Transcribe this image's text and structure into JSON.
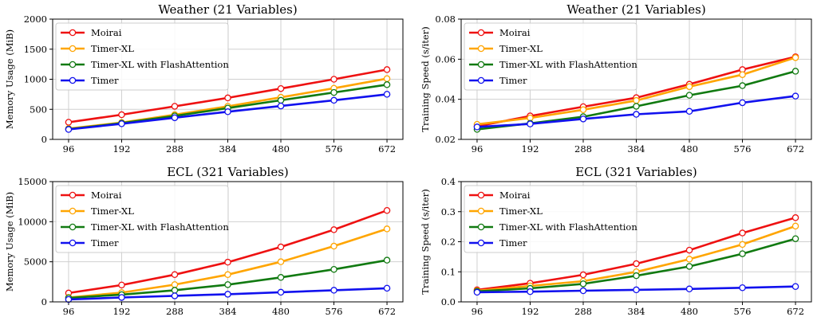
{
  "chart_data": [
    {
      "type": "line",
      "title": "Weather (21 Variables)",
      "xlabel": "",
      "ylabel": "Memory Usage (MiB)",
      "x": [
        96,
        192,
        288,
        384,
        480,
        576,
        672
      ],
      "ylim": [
        0,
        2000
      ],
      "yticks": [
        0,
        500,
        1000,
        1500,
        2000
      ],
      "ytick_labels": [
        "0",
        "500",
        "1000",
        "1500",
        "2000"
      ],
      "grid": true,
      "legend_position": "top-left",
      "series": [
        {
          "name": "Moirai",
          "color": "#ee1111",
          "values": [
            285,
            410,
            550,
            690,
            845,
            1000,
            1160
          ]
        },
        {
          "name": "Timer-XL",
          "color": "#ffa500",
          "values": [
            180,
            280,
            410,
            550,
            700,
            850,
            1010
          ]
        },
        {
          "name": "Timer-XL with FlashAttention",
          "color": "#117a11",
          "values": [
            170,
            270,
            390,
            520,
            650,
            780,
            910
          ]
        },
        {
          "name": "Timer",
          "color": "#1111ee",
          "values": [
            165,
            260,
            360,
            460,
            555,
            650,
            750
          ]
        }
      ]
    },
    {
      "type": "line",
      "title": "Weather (21 Variables)",
      "xlabel": "",
      "ylabel": "Training Speed (s/iter)",
      "x": [
        96,
        192,
        288,
        384,
        480,
        576,
        672
      ],
      "ylim": [
        0.02,
        0.08
      ],
      "yticks": [
        0.02,
        0.04,
        0.06,
        0.08
      ],
      "ytick_labels": [
        "0.02",
        "0.04",
        "0.06",
        "0.08"
      ],
      "grid": true,
      "legend_position": "top-left",
      "series": [
        {
          "name": "Moirai",
          "color": "#ee1111",
          "values": [
            0.0265,
            0.0317,
            0.0363,
            0.0408,
            0.0475,
            0.0548,
            0.0612
          ]
        },
        {
          "name": "Timer-XL",
          "color": "#ffa500",
          "values": [
            0.0275,
            0.0307,
            0.0348,
            0.0394,
            0.0463,
            0.0523,
            0.0608
          ]
        },
        {
          "name": "Timer-XL with FlashAttention",
          "color": "#117a11",
          "values": [
            0.025,
            0.028,
            0.0313,
            0.0365,
            0.042,
            0.0468,
            0.054
          ]
        },
        {
          "name": "Timer",
          "color": "#1111ee",
          "values": [
            0.0262,
            0.0277,
            0.0302,
            0.0325,
            0.034,
            0.0383,
            0.0416
          ]
        }
      ]
    },
    {
      "type": "line",
      "title": "ECL (321 Variables)",
      "xlabel": "",
      "ylabel": "Memory Usage (MiB)",
      "x": [
        96,
        192,
        288,
        384,
        480,
        576,
        672
      ],
      "ylim": [
        0,
        15000
      ],
      "yticks": [
        0,
        5000,
        10000,
        15000
      ],
      "ytick_labels": [
        "0",
        "5000",
        "10000",
        "15000"
      ],
      "grid": true,
      "legend_position": "top-left",
      "series": [
        {
          "name": "Moirai",
          "color": "#ee1111",
          "values": [
            1100,
            2100,
            3400,
            4950,
            6850,
            9000,
            11400
          ]
        },
        {
          "name": "Timer-XL",
          "color": "#ffa500",
          "values": [
            550,
            1150,
            2150,
            3400,
            5000,
            6950,
            9100
          ]
        },
        {
          "name": "Timer-XL with FlashAttention",
          "color": "#117a11",
          "values": [
            500,
            900,
            1450,
            2150,
            3050,
            4050,
            5200
          ]
        },
        {
          "name": "Timer",
          "color": "#1111ee",
          "values": [
            300,
            550,
            750,
            950,
            1200,
            1450,
            1700
          ]
        }
      ]
    },
    {
      "type": "line",
      "title": "ECL (321 Variables)",
      "xlabel": "",
      "ylabel": "Training Speed (s/iter)",
      "x": [
        96,
        192,
        288,
        384,
        480,
        576,
        672
      ],
      "ylim": [
        0.0,
        0.4
      ],
      "yticks": [
        0.0,
        0.1,
        0.2,
        0.3,
        0.4
      ],
      "ytick_labels": [
        "0.0",
        "0.1",
        "0.2",
        "0.3",
        "0.4"
      ],
      "grid": true,
      "legend_position": "top-left",
      "series": [
        {
          "name": "Moirai",
          "color": "#ee1111",
          "values": [
            0.04,
            0.062,
            0.09,
            0.127,
            0.172,
            0.229,
            0.28
          ]
        },
        {
          "name": "Timer-XL",
          "color": "#ffa500",
          "values": [
            0.037,
            0.053,
            0.069,
            0.1,
            0.142,
            0.191,
            0.252
          ]
        },
        {
          "name": "Timer-XL with FlashAttention",
          "color": "#117a11",
          "values": [
            0.035,
            0.045,
            0.06,
            0.087,
            0.118,
            0.16,
            0.21
          ]
        },
        {
          "name": "Timer",
          "color": "#1111ee",
          "values": [
            0.032,
            0.034,
            0.037,
            0.04,
            0.043,
            0.047,
            0.051
          ]
        }
      ]
    }
  ]
}
